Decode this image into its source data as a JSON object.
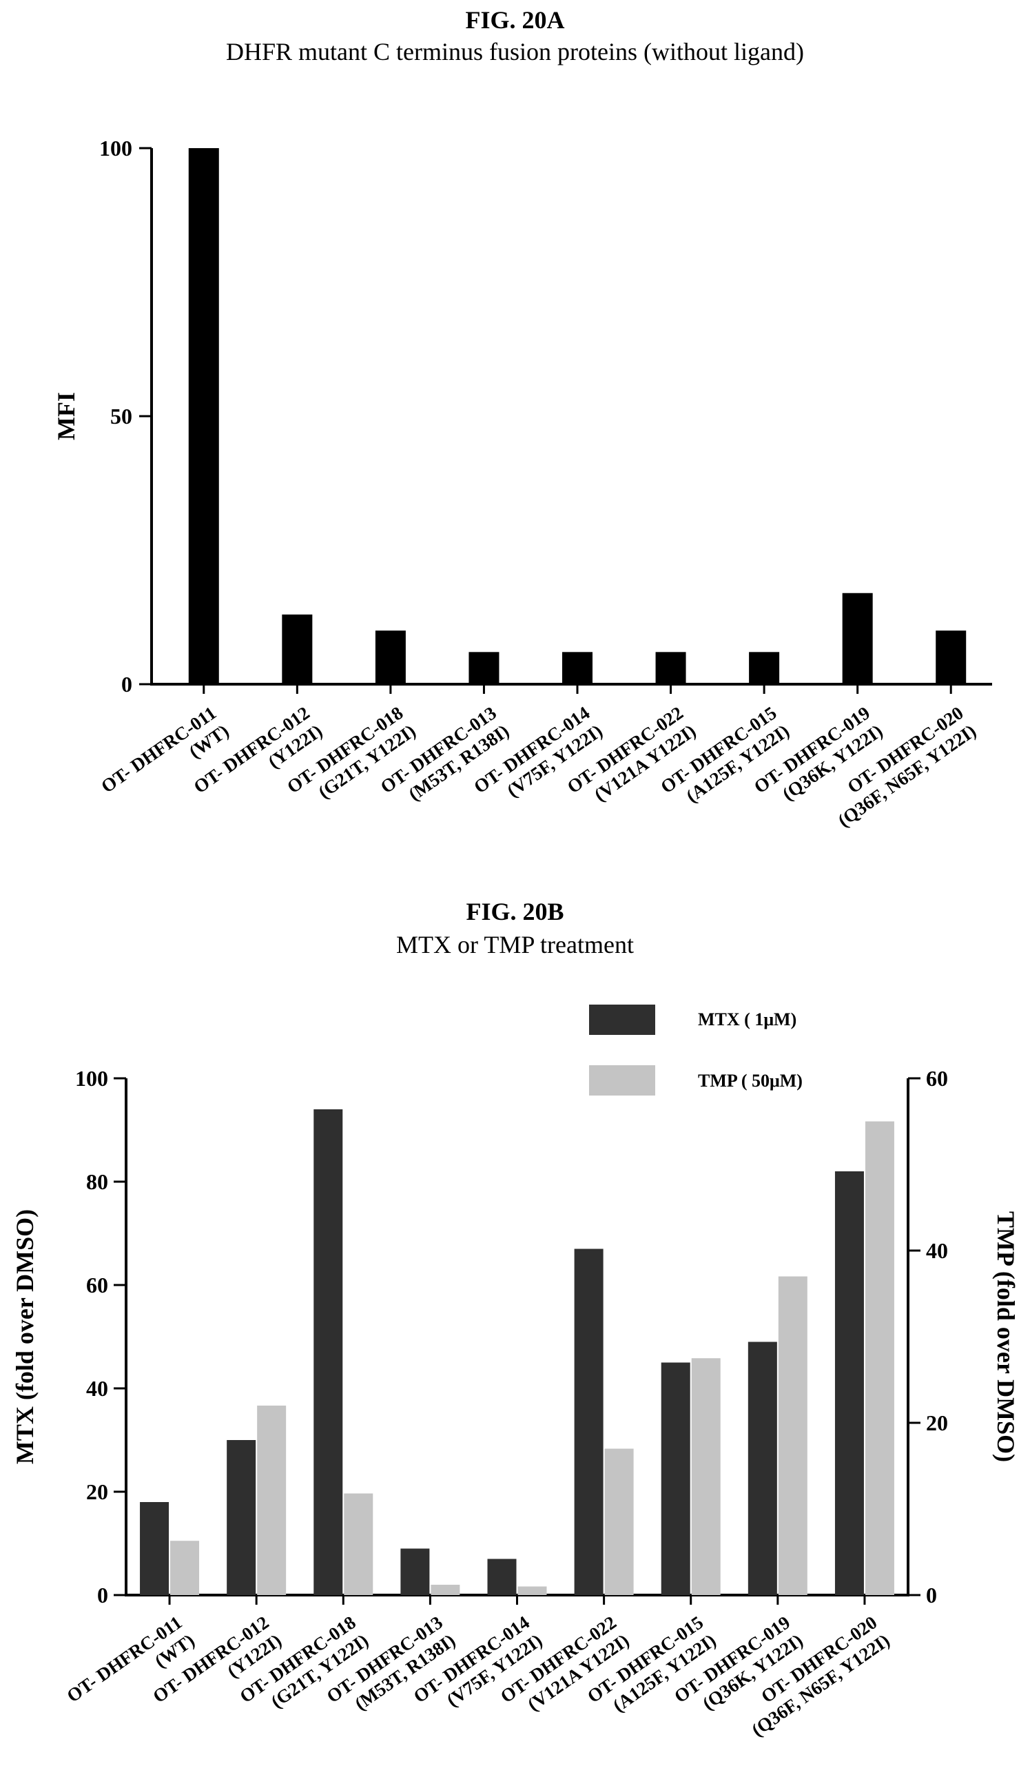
{
  "chart_data": [
    {
      "type": "bar",
      "figure_label": "FIG. 20A",
      "title": "DHFR mutant C terminus fusion proteins (without ligand)",
      "xlabel": "",
      "ylabel": "MFI",
      "ylim": [
        0,
        100
      ],
      "yticks": [
        0,
        50,
        100
      ],
      "categories": [
        [
          "OT- DHFRC-011",
          "(WT)"
        ],
        [
          "OT- DHFRC-012",
          "(Y122I)"
        ],
        [
          "OT- DHFRC-018",
          "(G21T, Y122I)"
        ],
        [
          "OT- DHFRC-013",
          "(M53T, R138I)"
        ],
        [
          "OT- DHFRC-014",
          "(V75F, Y122I)"
        ],
        [
          "OT- DHFRC-022",
          "(V121A Y122I)"
        ],
        [
          "OT- DHFRC-015",
          "(A125F, Y122I)"
        ],
        [
          "OT- DHFRC-019",
          "(Q36K, Y122I)"
        ],
        [
          "OT- DHFRC-020",
          "(Q36F, N65F, Y122I)"
        ]
      ],
      "values": [
        100,
        13,
        10,
        6,
        6,
        6,
        6,
        17,
        10
      ],
      "bar_color": "#000000"
    },
    {
      "type": "bar",
      "figure_label": "FIG. 20B",
      "title": "MTX or TMP treatment",
      "ylabel": "MTX (fold over DMSO)",
      "y2label": "TMP (fold over DMSO)",
      "ylim": [
        0,
        100
      ],
      "y2lim": [
        0,
        60
      ],
      "yticks": [
        0,
        20,
        40,
        60,
        80,
        100
      ],
      "y2ticks": [
        0,
        20,
        40,
        60
      ],
      "legend_position": "top-right",
      "categories": [
        [
          "OT- DHFRC-011",
          "(WT)"
        ],
        [
          "OT- DHFRC-012",
          "(Y122I)"
        ],
        [
          "OT- DHFRC-018",
          "(G21T, Y122I)"
        ],
        [
          "OT- DHFRC-013",
          "(M53T, R138I)"
        ],
        [
          "OT- DHFRC-014",
          "(V75F, Y122I)"
        ],
        [
          "OT- DHFRC-022",
          "(V121A Y122I)"
        ],
        [
          "OT- DHFRC-015",
          "(A125F, Y122I)"
        ],
        [
          "OT- DHFRC-019",
          "(Q36K, Y122I)"
        ],
        [
          "OT- DHFRC-020",
          "(Q36F, N65F, Y122I)"
        ]
      ],
      "series": [
        {
          "name": "MTX ( 1μM)",
          "axis": "left",
          "color": "#2f2f2f",
          "values": [
            18,
            30,
            94,
            9,
            7,
            67,
            45,
            49,
            82
          ]
        },
        {
          "name": "TMP ( 50μM)",
          "axis": "right",
          "color": "#c4c4c4",
          "values": [
            6.3,
            22,
            11.8,
            1.2,
            1.0,
            17,
            27.5,
            37,
            55
          ]
        }
      ]
    }
  ]
}
